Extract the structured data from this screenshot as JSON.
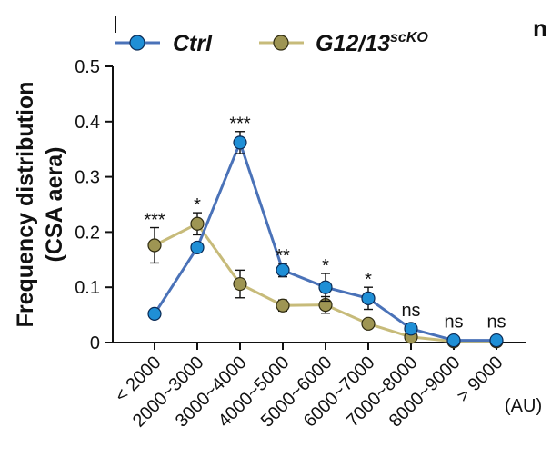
{
  "chart_data": {
    "type": "line",
    "title": "",
    "xlabel": "",
    "x_unit": "(AU)",
    "ylabel_line1": "Frequency distribution",
    "ylabel_line2": "(CSA aera)",
    "categories": [
      "< 2000",
      "2000~3000",
      "3000~4000",
      "4000~5000",
      "5000~6000",
      "6000~7000",
      "7000~8000",
      "8000~9000",
      "> 9000"
    ],
    "ylim": [
      0,
      0.5
    ],
    "yticks": [
      "0",
      "0.1",
      "0.2",
      "0.3",
      "0.4",
      "0.5"
    ],
    "ytick_values": [
      0,
      0.1,
      0.2,
      0.3,
      0.4,
      0.5
    ],
    "legend_position": "top",
    "series": [
      {
        "name": "Ctrl",
        "color": "#4a72b8",
        "marker_color": "#1f8fd6",
        "values": [
          0.052,
          0.172,
          0.362,
          0.131,
          0.1,
          0.08,
          0.025,
          0.004,
          0.004
        ],
        "errors": [
          0.0,
          0.0,
          0.02,
          0.012,
          0.025,
          0.02,
          0.0,
          0.0,
          0.0
        ]
      },
      {
        "name_main": "G12/13",
        "name_sup": "scKO",
        "color": "#c7bb7a",
        "marker_color": "#9e9553",
        "values": [
          0.176,
          0.215,
          0.106,
          0.067,
          0.068,
          0.034,
          0.01,
          0.002,
          0.002
        ],
        "errors": [
          0.032,
          0.02,
          0.025,
          0.01,
          0.015,
          0.0,
          0.0,
          0.0,
          0.0
        ]
      }
    ],
    "significance": [
      "***",
      "*",
      "***",
      "**",
      "*",
      "*",
      "ns",
      "ns",
      "ns"
    ],
    "corner_text": "n"
  }
}
